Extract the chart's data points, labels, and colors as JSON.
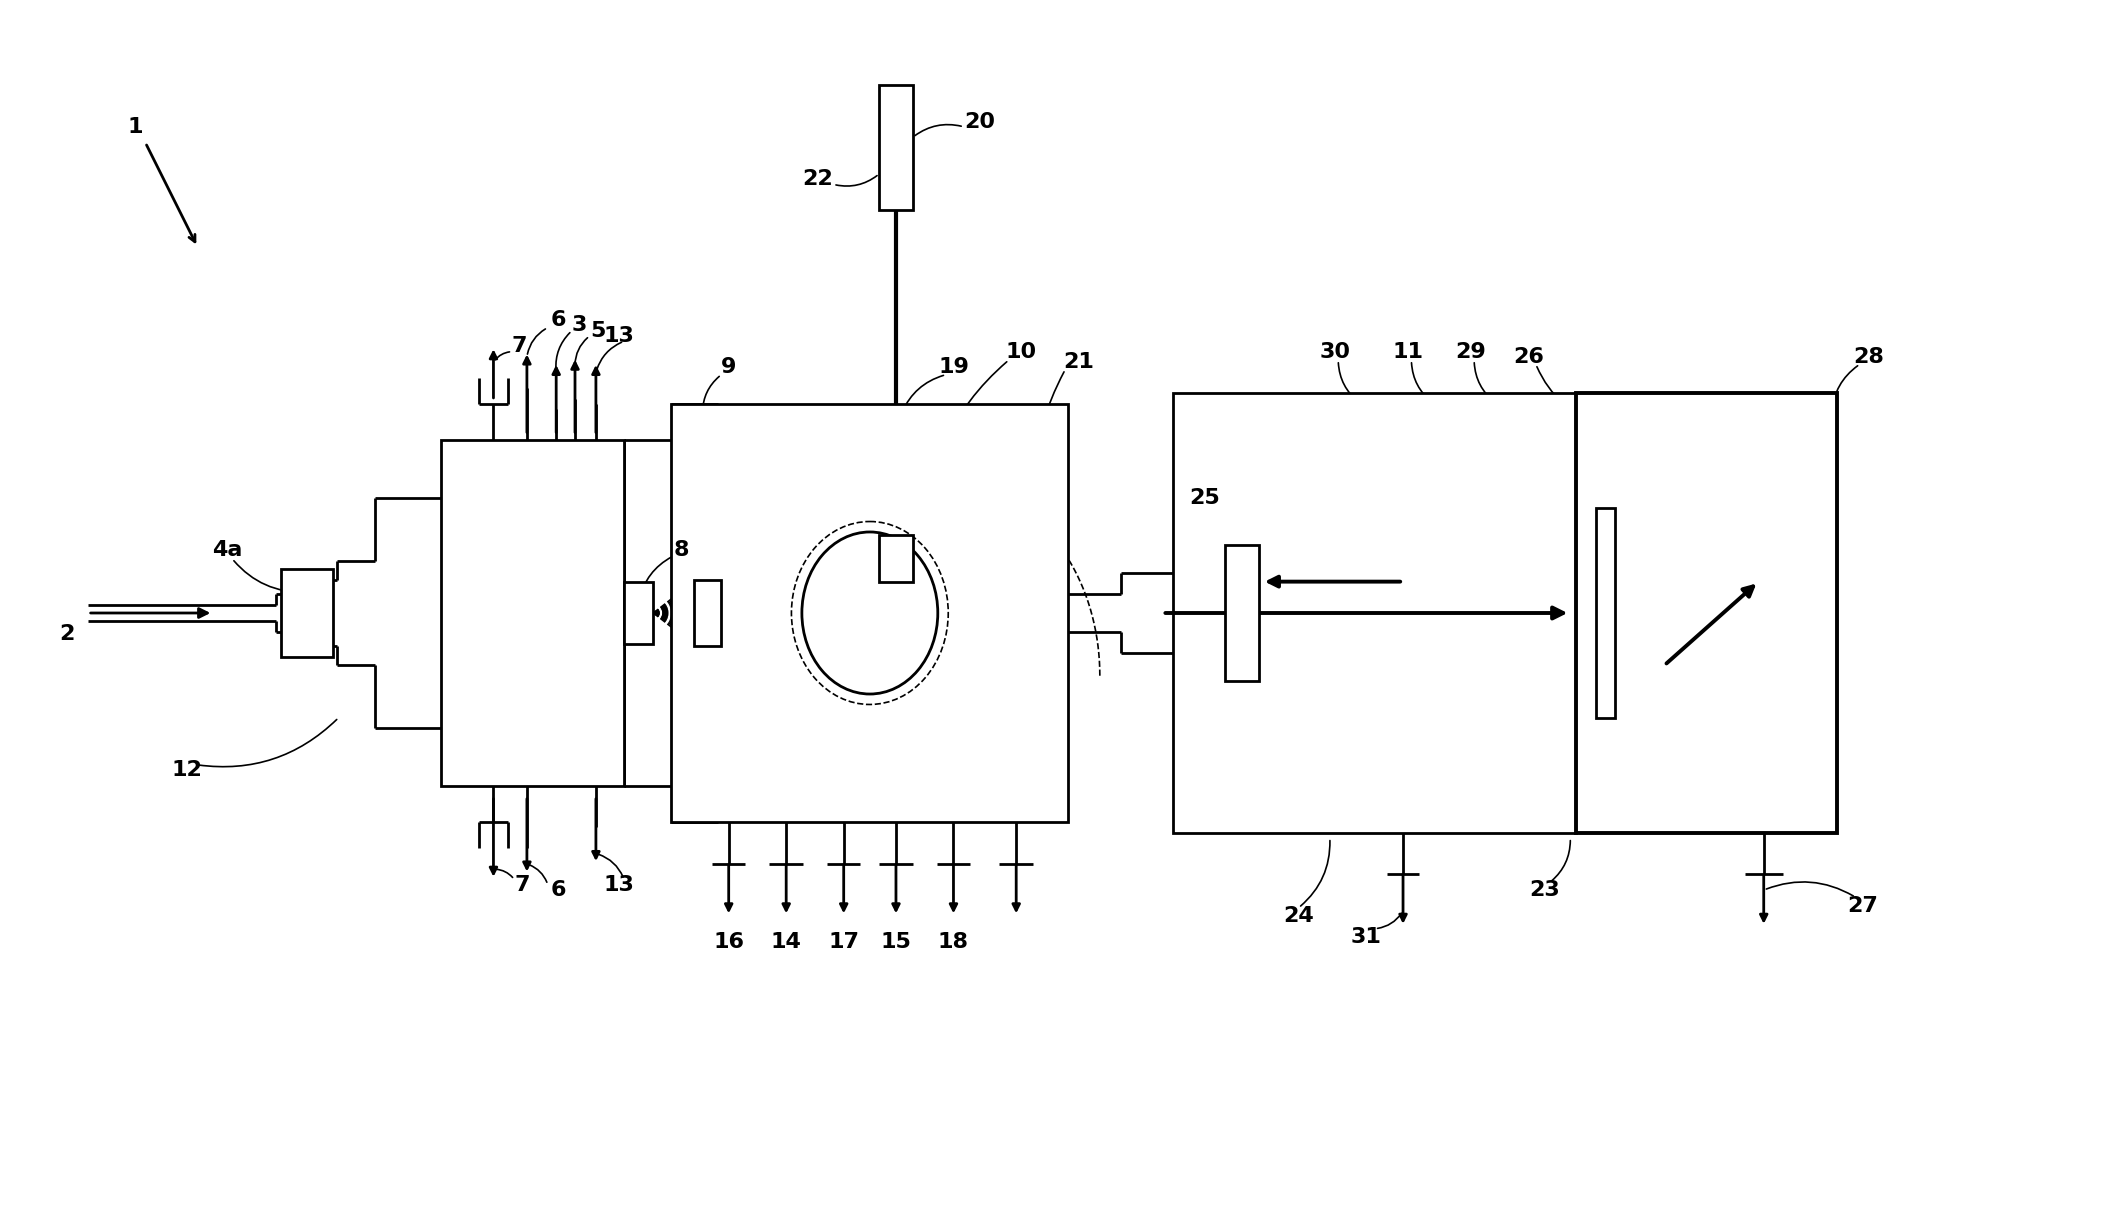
{
  "bg": "#ffffff",
  "lc": "#000000",
  "figsize": [
    21.15,
    12.26
  ],
  "dpi": 100,
  "lw": 2.0,
  "lw_thin": 1.2,
  "lw_thick": 2.8
}
